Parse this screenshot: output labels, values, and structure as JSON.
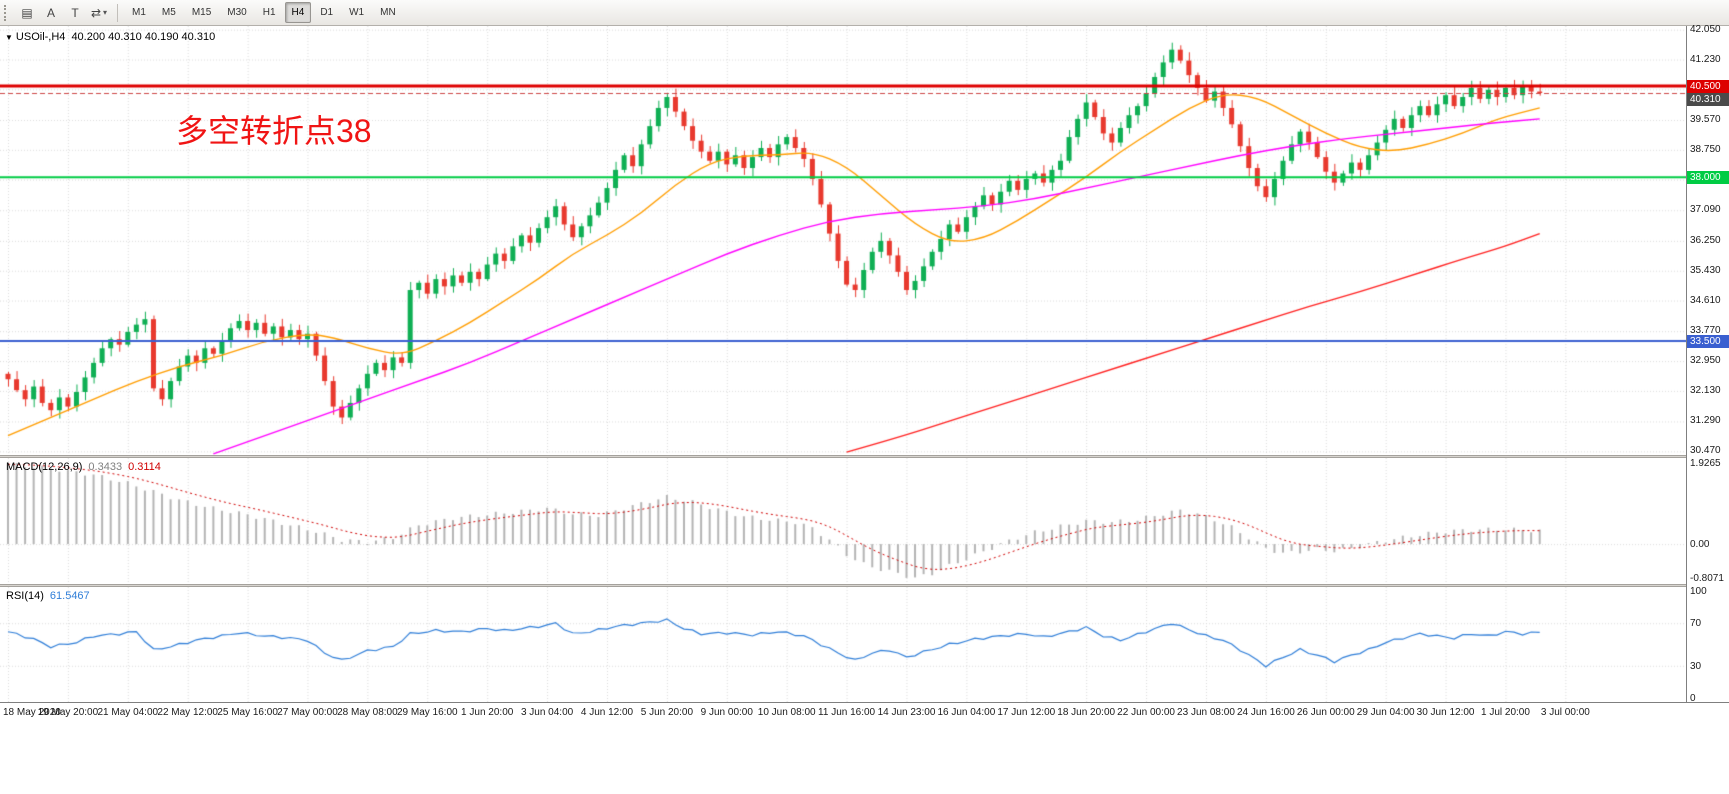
{
  "toolbar": {
    "buttons": [
      {
        "name": "chart-window-icon",
        "glyph": "▤"
      },
      {
        "name": "annotate-letter-icon",
        "glyph": "A"
      },
      {
        "name": "text-tool-icon",
        "glyph": "T"
      },
      {
        "name": "symbol-cycle-icon",
        "glyph": "⇄",
        "caret": "▾"
      }
    ],
    "timeframes": [
      "M1",
      "M5",
      "M15",
      "M30",
      "H1",
      "H4",
      "D1",
      "W1",
      "MN"
    ],
    "active_timeframe": "H4"
  },
  "header": {
    "collapse_arrow": "▼",
    "symbol_period": "USOil-,H4",
    "ohlc_text": "40.200 40.310 40.190 40.310"
  },
  "annotation": {
    "text": "多空转折点38",
    "color": "#f01414"
  },
  "axis": {
    "price_ticks": [
      42.05,
      41.23,
      40.41,
      39.57,
      38.75,
      37.93,
      37.09,
      36.25,
      35.43,
      34.61,
      33.77,
      32.95,
      32.13,
      31.29,
      30.47
    ],
    "macd_ticks": [
      {
        "v": 1.9265,
        "label": "1.9265"
      },
      {
        "v": 0,
        "label": "0.00"
      },
      {
        "v": -0.8071,
        "label": "-0.8071"
      }
    ],
    "rsi_ticks": [
      {
        "v": 100,
        "label": "100"
      },
      {
        "v": 70,
        "label": "70"
      },
      {
        "v": 30,
        "label": "30"
      },
      {
        "v": 0,
        "label": "0"
      }
    ]
  },
  "chart_data": {
    "type": "candlestick",
    "symbol": "USOil-",
    "timeframe": "H4",
    "current_ohlc": {
      "open": 40.2,
      "high": 40.31,
      "low": 40.19,
      "close": 40.31
    },
    "ylim": [
      30.37,
      42.15
    ],
    "x_labels": [
      "18 May 2020",
      "19 May 20:00",
      "21 May 04:00",
      "22 May 12:00",
      "25 May 16:00",
      "27 May 00:00",
      "28 May 08:00",
      "29 May 16:00",
      "1 Jun 20:00",
      "3 Jun 04:00",
      "4 Jun 12:00",
      "5 Jun 20:00",
      "9 Jun 00:00",
      "10 Jun 08:00",
      "11 Jun 16:00",
      "14 Jun 23:00",
      "16 Jun 04:00",
      "17 Jun 12:00",
      "18 Jun 20:00",
      "22 Jun 00:00",
      "23 Jun 08:00",
      "24 Jun 16:00",
      "26 Jun 00:00",
      "29 Jun 04:00",
      "30 Jun 12:00",
      "1 Jul 20:00",
      "3 Jul 00:00"
    ],
    "closes": [
      32.45,
      32.15,
      31.9,
      32.25,
      31.8,
      31.6,
      31.95,
      31.7,
      32.1,
      32.5,
      32.9,
      33.3,
      33.55,
      33.4,
      33.75,
      33.95,
      34.1,
      32.2,
      31.9,
      32.4,
      32.8,
      33.1,
      32.9,
      33.3,
      33.15,
      33.5,
      33.85,
      34.05,
      33.8,
      34.0,
      33.7,
      33.9,
      33.6,
      33.8,
      33.55,
      33.7,
      33.1,
      32.4,
      31.7,
      31.4,
      31.8,
      32.2,
      32.6,
      32.9,
      32.7,
      33.05,
      32.9,
      34.9,
      35.1,
      34.8,
      35.2,
      35.0,
      35.3,
      35.1,
      35.4,
      35.2,
      35.6,
      35.9,
      35.7,
      36.1,
      36.4,
      36.2,
      36.6,
      36.9,
      37.2,
      36.7,
      36.35,
      36.65,
      36.95,
      37.3,
      37.7,
      38.2,
      38.6,
      38.3,
      38.9,
      39.4,
      39.9,
      40.2,
      39.8,
      39.4,
      39.0,
      38.7,
      38.45,
      38.7,
      38.35,
      38.6,
      38.25,
      38.55,
      38.8,
      38.55,
      38.9,
      39.1,
      38.8,
      38.5,
      37.95,
      37.25,
      36.45,
      35.7,
      35.05,
      34.9,
      35.45,
      35.95,
      36.25,
      35.85,
      35.4,
      34.9,
      35.15,
      35.55,
      35.95,
      36.3,
      36.7,
      36.5,
      36.9,
      37.2,
      37.5,
      37.25,
      37.6,
      37.9,
      37.65,
      37.95,
      38.1,
      37.85,
      38.2,
      38.45,
      39.1,
      39.6,
      40.05,
      39.65,
      39.2,
      38.95,
      39.35,
      39.7,
      39.95,
      40.3,
      40.75,
      41.15,
      41.5,
      41.2,
      40.8,
      40.45,
      40.1,
      40.35,
      39.9,
      39.45,
      38.85,
      38.25,
      37.75,
      37.45,
      37.95,
      38.45,
      38.9,
      39.25,
      38.95,
      38.55,
      38.15,
      37.85,
      38.1,
      38.4,
      38.2,
      38.6,
      38.95,
      39.3,
      39.6,
      39.35,
      39.7,
      39.95,
      39.7,
      40.0,
      40.25,
      39.95,
      40.2,
      40.45,
      40.15,
      40.4,
      40.2,
      40.45,
      40.25,
      40.5,
      40.35,
      40.31
    ],
    "candle_colors": {
      "up": "#0faf54",
      "down": "#e8392e"
    },
    "levels": [
      {
        "price": 40.5,
        "label": "40.500",
        "color": "#dd0000",
        "width": 3
      },
      {
        "price": 38.0,
        "label": "38.000",
        "color": "#00cc44",
        "width": 2
      },
      {
        "price": 33.5,
        "label": "33.500",
        "color": "#3a5fd0",
        "width": 2
      }
    ],
    "bid": {
      "price": 40.31,
      "label": "40.310",
      "color": "#4a4a4a",
      "line_color": "#cc4444"
    },
    "moving_averages": [
      {
        "name": "ma-fast-orange",
        "color": "#ff9d00",
        "anchors": [
          [
            0,
            30.9
          ],
          [
            5,
            31.4
          ],
          [
            10,
            31.9
          ],
          [
            15,
            32.4
          ],
          [
            20,
            32.8
          ],
          [
            25,
            33.1
          ],
          [
            30,
            33.5
          ],
          [
            35,
            33.7
          ],
          [
            38,
            33.6
          ],
          [
            42,
            33.3
          ],
          [
            46,
            33.1
          ],
          [
            50,
            33.5
          ],
          [
            54,
            34.0
          ],
          [
            58,
            34.6
          ],
          [
            62,
            35.2
          ],
          [
            66,
            35.9
          ],
          [
            70,
            36.4
          ],
          [
            74,
            37.0
          ],
          [
            78,
            37.8
          ],
          [
            82,
            38.4
          ],
          [
            86,
            38.6
          ],
          [
            90,
            38.6
          ],
          [
            94,
            38.7
          ],
          [
            98,
            38.3
          ],
          [
            102,
            37.5
          ],
          [
            106,
            36.7
          ],
          [
            110,
            36.2
          ],
          [
            114,
            36.3
          ],
          [
            118,
            36.8
          ],
          [
            122,
            37.4
          ],
          [
            126,
            38.0
          ],
          [
            130,
            38.7
          ],
          [
            134,
            39.3
          ],
          [
            138,
            39.9
          ],
          [
            142,
            40.3
          ],
          [
            146,
            40.2
          ],
          [
            150,
            39.7
          ],
          [
            154,
            39.2
          ],
          [
            158,
            38.8
          ],
          [
            162,
            38.7
          ],
          [
            166,
            38.9
          ],
          [
            170,
            39.2
          ],
          [
            174,
            39.6
          ],
          [
            179,
            39.9
          ]
        ]
      },
      {
        "name": "ma-mid-magenta",
        "color": "#ff00ff",
        "anchors": [
          [
            24,
            30.4
          ],
          [
            30,
            30.9
          ],
          [
            36,
            31.4
          ],
          [
            42,
            31.9
          ],
          [
            48,
            32.4
          ],
          [
            54,
            32.9
          ],
          [
            60,
            33.5
          ],
          [
            66,
            34.1
          ],
          [
            72,
            34.7
          ],
          [
            78,
            35.3
          ],
          [
            84,
            35.9
          ],
          [
            90,
            36.4
          ],
          [
            96,
            36.8
          ],
          [
            102,
            37.0
          ],
          [
            108,
            37.1
          ],
          [
            114,
            37.2
          ],
          [
            120,
            37.4
          ],
          [
            126,
            37.7
          ],
          [
            132,
            38.0
          ],
          [
            138,
            38.3
          ],
          [
            144,
            38.6
          ],
          [
            150,
            38.85
          ],
          [
            156,
            39.05
          ],
          [
            162,
            39.2
          ],
          [
            168,
            39.35
          ],
          [
            174,
            39.5
          ],
          [
            179,
            39.6
          ]
        ]
      },
      {
        "name": "ma-slow-red",
        "color": "#ff2020",
        "anchors": [
          [
            98,
            30.45
          ],
          [
            104,
            30.85
          ],
          [
            110,
            31.3
          ],
          [
            116,
            31.75
          ],
          [
            122,
            32.2
          ],
          [
            128,
            32.65
          ],
          [
            134,
            33.1
          ],
          [
            140,
            33.55
          ],
          [
            146,
            34.0
          ],
          [
            152,
            34.45
          ],
          [
            158,
            34.85
          ],
          [
            164,
            35.3
          ],
          [
            170,
            35.75
          ],
          [
            175,
            36.1
          ],
          [
            179,
            36.45
          ]
        ]
      }
    ],
    "macd": {
      "label": "MACD(12,26,9)",
      "value_main": "0.3433",
      "value_signal": "0.3114",
      "ylim": [
        -0.95,
        2.05
      ],
      "hist_color": "#b4b4b4",
      "signal_color": "#cf0000",
      "anchors": [
        [
          0,
          1.9
        ],
        [
          5,
          1.8
        ],
        [
          10,
          1.65
        ],
        [
          14,
          1.45
        ],
        [
          17,
          1.25
        ],
        [
          20,
          1.05
        ],
        [
          24,
          0.85
        ],
        [
          28,
          0.7
        ],
        [
          32,
          0.5
        ],
        [
          36,
          0.3
        ],
        [
          39,
          0.1
        ],
        [
          42,
          0.05
        ],
        [
          45,
          0.15
        ],
        [
          48,
          0.45
        ],
        [
          52,
          0.62
        ],
        [
          56,
          0.7
        ],
        [
          60,
          0.78
        ],
        [
          63,
          0.85
        ],
        [
          66,
          0.72
        ],
        [
          69,
          0.68
        ],
        [
          72,
          0.85
        ],
        [
          75,
          1.02
        ],
        [
          77,
          1.12
        ],
        [
          80,
          1.0
        ],
        [
          83,
          0.82
        ],
        [
          86,
          0.66
        ],
        [
          89,
          0.58
        ],
        [
          92,
          0.52
        ],
        [
          94,
          0.38
        ],
        [
          96,
          0.1
        ],
        [
          98,
          -0.25
        ],
        [
          100,
          -0.48
        ],
        [
          102,
          -0.6
        ],
        [
          104,
          -0.7
        ],
        [
          106,
          -0.81
        ],
        [
          108,
          -0.7
        ],
        [
          110,
          -0.52
        ],
        [
          112,
          -0.35
        ],
        [
          114,
          -0.18
        ],
        [
          116,
          0.0
        ],
        [
          118,
          0.15
        ],
        [
          120,
          0.28
        ],
        [
          123,
          0.42
        ],
        [
          126,
          0.55
        ],
        [
          129,
          0.52
        ],
        [
          132,
          0.58
        ],
        [
          135,
          0.72
        ],
        [
          137,
          0.8
        ],
        [
          139,
          0.72
        ],
        [
          141,
          0.58
        ],
        [
          143,
          0.4
        ],
        [
          145,
          0.15
        ],
        [
          147,
          -0.1
        ],
        [
          149,
          -0.22
        ],
        [
          151,
          -0.18
        ],
        [
          153,
          -0.12
        ],
        [
          155,
          -0.16
        ],
        [
          157,
          -0.1
        ],
        [
          159,
          0.0
        ],
        [
          162,
          0.12
        ],
        [
          165,
          0.22
        ],
        [
          168,
          0.3
        ],
        [
          171,
          0.34
        ],
        [
          174,
          0.35
        ],
        [
          177,
          0.34
        ],
        [
          179,
          0.31
        ]
      ]
    },
    "rsi": {
      "label": "RSI(14)",
      "value": "61.5467",
      "color": "#2f7ed8",
      "level_lines": [
        70,
        30
      ],
      "ylim": [
        -4,
        104
      ],
      "anchors": [
        [
          0,
          62
        ],
        [
          3,
          55
        ],
        [
          5,
          48
        ],
        [
          8,
          52
        ],
        [
          10,
          58
        ],
        [
          13,
          60
        ],
        [
          15,
          62
        ],
        [
          17,
          45
        ],
        [
          19,
          48
        ],
        [
          22,
          54
        ],
        [
          25,
          58
        ],
        [
          27,
          61
        ],
        [
          30,
          58
        ],
        [
          33,
          56
        ],
        [
          35,
          54
        ],
        [
          37,
          42
        ],
        [
          39,
          35
        ],
        [
          42,
          44
        ],
        [
          45,
          48
        ],
        [
          47,
          60
        ],
        [
          50,
          63
        ],
        [
          53,
          62
        ],
        [
          56,
          65
        ],
        [
          58,
          63
        ],
        [
          61,
          66
        ],
        [
          63,
          68
        ],
        [
          64,
          70
        ],
        [
          66,
          60
        ],
        [
          68,
          62
        ],
        [
          71,
          67
        ],
        [
          74,
          70
        ],
        [
          77,
          73
        ],
        [
          79,
          65
        ],
        [
          81,
          60
        ],
        [
          84,
          61
        ],
        [
          87,
          59
        ],
        [
          90,
          62
        ],
        [
          93,
          58
        ],
        [
          95,
          50
        ],
        [
          97,
          42
        ],
        [
          99,
          35
        ],
        [
          101,
          42
        ],
        [
          103,
          45
        ],
        [
          105,
          38
        ],
        [
          107,
          43
        ],
        [
          110,
          50
        ],
        [
          113,
          55
        ],
        [
          116,
          58
        ],
        [
          119,
          60
        ],
        [
          121,
          57
        ],
        [
          124,
          62
        ],
        [
          126,
          66
        ],
        [
          128,
          58
        ],
        [
          130,
          54
        ],
        [
          133,
          62
        ],
        [
          136,
          70
        ],
        [
          138,
          64
        ],
        [
          140,
          58
        ],
        [
          142,
          54
        ],
        [
          144,
          45
        ],
        [
          146,
          35
        ],
        [
          147,
          30
        ],
        [
          149,
          38
        ],
        [
          151,
          45
        ],
        [
          153,
          40
        ],
        [
          155,
          34
        ],
        [
          157,
          40
        ],
        [
          159,
          45
        ],
        [
          161,
          52
        ],
        [
          163,
          56
        ],
        [
          165,
          60
        ],
        [
          167,
          58
        ],
        [
          169,
          56
        ],
        [
          171,
          60
        ],
        [
          173,
          58
        ],
        [
          175,
          62
        ],
        [
          177,
          60
        ],
        [
          179,
          61.5
        ]
      ]
    }
  }
}
